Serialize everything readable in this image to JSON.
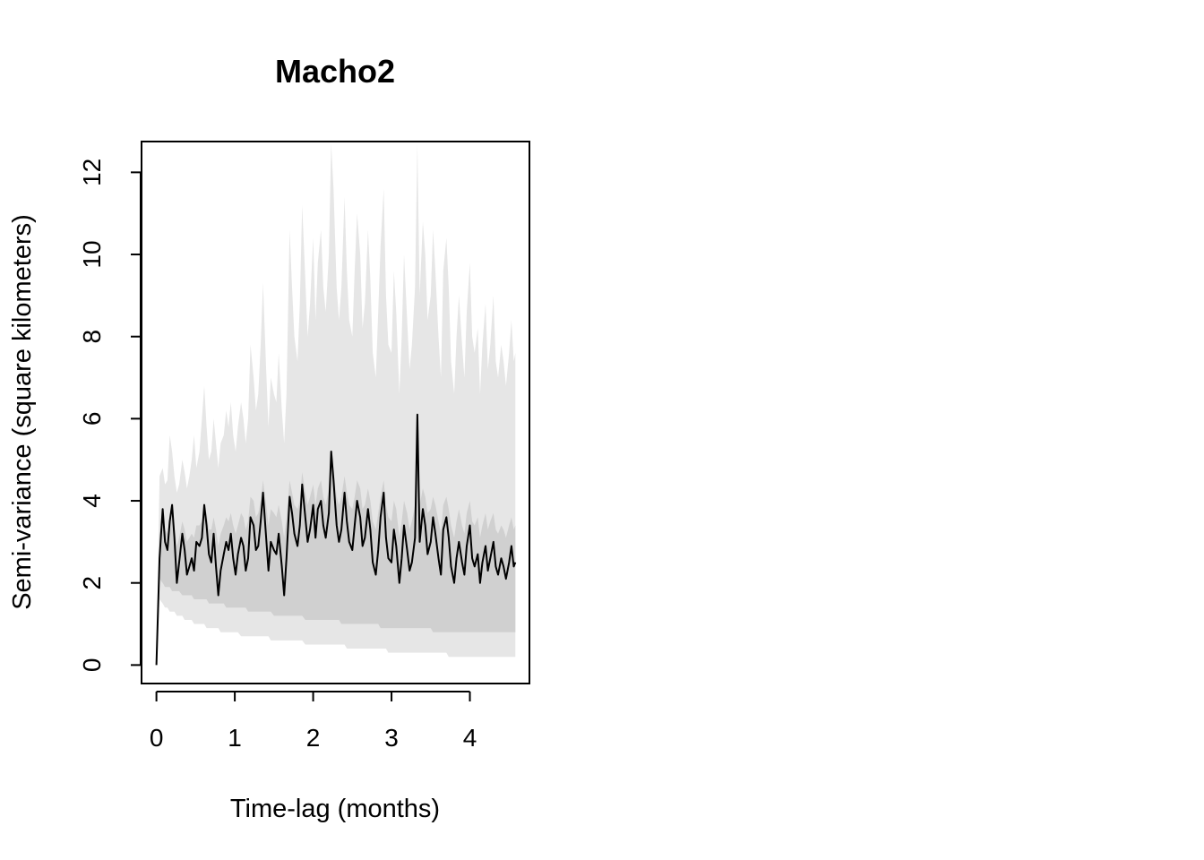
{
  "chart_data": {
    "type": "line",
    "title": "Macho2",
    "xlabel": "Time-lag (months)",
    "ylabel": "Semi-variance (square kilometers)",
    "xlim": [
      -0.19,
      4.76
    ],
    "ylim": [
      -0.45,
      12.75
    ],
    "xticks": [
      0,
      1,
      2,
      3,
      4
    ],
    "yticks": [
      0,
      2,
      4,
      6,
      8,
      10,
      12
    ],
    "grid": false,
    "legend": "none",
    "colors": {
      "line": "#000000",
      "outer_band": "#e6e6e6",
      "inner_band": "#d0d0d0",
      "axis": "#000000"
    },
    "series": [
      {
        "x": [
          0,
          0.04,
          0.08,
          0.11,
          0.14,
          0.17,
          0.2,
          0.23,
          0.26,
          0.29,
          0.33,
          0.36,
          0.39,
          0.42,
          0.45,
          0.48,
          0.51,
          0.55,
          0.58,
          0.61,
          0.64,
          0.67,
          0.7,
          0.73,
          0.76,
          0.79,
          0.82,
          0.86,
          0.89,
          0.92,
          0.95,
          0.98,
          1.01,
          1.04,
          1.08,
          1.11,
          1.14,
          1.17,
          1.2,
          1.24,
          1.27,
          1.3,
          1.33,
          1.36,
          1.4,
          1.43,
          1.46,
          1.5,
          1.53,
          1.56,
          1.6,
          1.63,
          1.66,
          1.7,
          1.73,
          1.76,
          1.8,
          1.83,
          1.86,
          1.9,
          1.93,
          1.96,
          2.0,
          2.03,
          2.06,
          2.1,
          2.13,
          2.16,
          2.2,
          2.23,
          2.26,
          2.3,
          2.33,
          2.36,
          2.4,
          2.43,
          2.46,
          2.5,
          2.53,
          2.56,
          2.6,
          2.63,
          2.66,
          2.7,
          2.73,
          2.76,
          2.8,
          2.83,
          2.86,
          2.9,
          2.93,
          2.96,
          3.0,
          3.03,
          3.06,
          3.1,
          3.13,
          3.16,
          3.2,
          3.23,
          3.26,
          3.3,
          3.33,
          3.36,
          3.4,
          3.43,
          3.46,
          3.5,
          3.53,
          3.56,
          3.6,
          3.63,
          3.66,
          3.7,
          3.73,
          3.76,
          3.8,
          3.83,
          3.86,
          3.9,
          3.93,
          3.96,
          4.0,
          4.03,
          4.06,
          4.1,
          4.13,
          4.16,
          4.2,
          4.23,
          4.26,
          4.3,
          4.33,
          4.36,
          4.4,
          4.43,
          4.46,
          4.5,
          4.53,
          4.56,
          4.58
        ],
        "y": [
          0.0,
          2.6,
          3.8,
          3.0,
          2.8,
          3.5,
          3.9,
          3.1,
          2.0,
          2.5,
          3.2,
          2.8,
          2.2,
          2.4,
          2.6,
          2.3,
          3.0,
          2.9,
          3.1,
          3.9,
          3.4,
          2.7,
          2.5,
          3.2,
          2.4,
          1.7,
          2.3,
          2.7,
          3.0,
          2.8,
          3.2,
          2.6,
          2.2,
          2.7,
          3.1,
          2.9,
          2.3,
          2.6,
          3.6,
          3.4,
          2.8,
          2.9,
          3.5,
          4.2,
          3.1,
          2.3,
          3.0,
          2.8,
          2.7,
          3.2,
          2.4,
          1.7,
          2.6,
          4.1,
          3.7,
          3.2,
          2.9,
          3.4,
          4.4,
          3.6,
          3.0,
          3.3,
          3.9,
          3.1,
          3.8,
          4.0,
          3.4,
          3.1,
          3.7,
          5.2,
          4.5,
          3.4,
          3.0,
          3.3,
          4.2,
          3.5,
          3.0,
          2.8,
          3.4,
          4.0,
          3.6,
          2.9,
          3.1,
          3.8,
          3.3,
          2.5,
          2.2,
          2.8,
          3.6,
          4.2,
          3.1,
          2.6,
          2.5,
          3.3,
          2.9,
          2.0,
          2.6,
          3.4,
          2.8,
          2.3,
          2.5,
          3.1,
          6.1,
          3.0,
          3.8,
          3.4,
          2.7,
          3.0,
          3.6,
          3.2,
          2.6,
          2.2,
          3.3,
          3.6,
          3.1,
          2.4,
          2.0,
          2.6,
          3.0,
          2.5,
          2.2,
          2.9,
          3.4,
          2.6,
          2.4,
          2.7,
          2.0,
          2.5,
          2.9,
          2.3,
          2.6,
          3.0,
          2.4,
          2.2,
          2.6,
          2.4,
          2.1,
          2.5,
          2.9,
          2.4,
          2.5
        ],
        "outer_lower": [
          0.0,
          1.6,
          1.5,
          1.4,
          1.4,
          1.3,
          1.3,
          1.3,
          1.2,
          1.2,
          1.2,
          1.1,
          1.1,
          1.1,
          1.1,
          1.0,
          1.0,
          1.0,
          1.0,
          1.0,
          0.9,
          0.9,
          0.9,
          0.9,
          0.9,
          0.9,
          0.8,
          0.8,
          0.8,
          0.8,
          0.8,
          0.8,
          0.8,
          0.8,
          0.7,
          0.7,
          0.7,
          0.7,
          0.7,
          0.7,
          0.7,
          0.7,
          0.7,
          0.7,
          0.7,
          0.7,
          0.6,
          0.6,
          0.6,
          0.6,
          0.6,
          0.6,
          0.6,
          0.6,
          0.6,
          0.6,
          0.6,
          0.6,
          0.6,
          0.5,
          0.5,
          0.5,
          0.5,
          0.5,
          0.5,
          0.5,
          0.5,
          0.5,
          0.5,
          0.5,
          0.5,
          0.5,
          0.5,
          0.5,
          0.5,
          0.4,
          0.4,
          0.4,
          0.4,
          0.4,
          0.4,
          0.4,
          0.4,
          0.4,
          0.4,
          0.4,
          0.4,
          0.4,
          0.4,
          0.4,
          0.4,
          0.3,
          0.3,
          0.3,
          0.3,
          0.3,
          0.3,
          0.3,
          0.3,
          0.3,
          0.3,
          0.3,
          0.3,
          0.3,
          0.3,
          0.3,
          0.3,
          0.3,
          0.3,
          0.3,
          0.3,
          0.3,
          0.3,
          0.3,
          0.2,
          0.2,
          0.2,
          0.2,
          0.2,
          0.2,
          0.2,
          0.2,
          0.2,
          0.2,
          0.2,
          0.2,
          0.2,
          0.2,
          0.2,
          0.2,
          0.2,
          0.2,
          0.2,
          0.2,
          0.2,
          0.2,
          0.2,
          0.2,
          0.2,
          0.2,
          0.2,
          0.2
        ],
        "outer_upper": [
          0.0,
          4.6,
          4.8,
          4.4,
          4.5,
          5.6,
          5.2,
          4.6,
          4.2,
          4.4,
          5.0,
          4.7,
          4.3,
          4.6,
          5.0,
          5.6,
          4.8,
          5.2,
          6.0,
          6.8,
          5.8,
          5.0,
          5.2,
          6.0,
          5.4,
          4.8,
          5.4,
          5.6,
          6.2,
          5.8,
          6.4,
          5.6,
          5.2,
          5.8,
          6.4,
          6.0,
          5.4,
          6.0,
          7.8,
          7.0,
          6.2,
          6.6,
          7.8,
          9.3,
          7.2,
          5.8,
          7.0,
          6.6,
          6.4,
          7.6,
          6.2,
          5.4,
          6.6,
          10.6,
          9.2,
          8.0,
          7.4,
          8.8,
          11.2,
          9.4,
          8.0,
          8.8,
          10.4,
          8.4,
          9.8,
          10.6,
          9.2,
          8.6,
          10.0,
          12.7,
          11.6,
          9.2,
          8.4,
          9.2,
          11.4,
          9.6,
          8.4,
          8.0,
          9.6,
          11.0,
          10.0,
          8.2,
          8.8,
          10.6,
          9.4,
          7.6,
          7.0,
          8.6,
          10.2,
          11.6,
          9.0,
          7.8,
          7.6,
          9.6,
          8.6,
          6.6,
          8.0,
          10.0,
          8.4,
          7.2,
          7.8,
          9.2,
          12.7,
          9.0,
          10.8,
          10.0,
          8.4,
          9.0,
          10.6,
          9.6,
          8.0,
          7.0,
          9.6,
          10.4,
          9.2,
          7.4,
          6.6,
          8.0,
          9.0,
          7.8,
          7.0,
          8.6,
          9.8,
          8.0,
          7.6,
          8.2,
          6.6,
          7.8,
          8.8,
          7.2,
          7.8,
          9.0,
          7.4,
          7.0,
          7.8,
          7.4,
          6.8,
          7.6,
          8.4,
          7.4,
          7.6
        ],
        "inner_lower": [
          0.0,
          2.1,
          2.0,
          1.9,
          1.9,
          1.9,
          1.8,
          1.8,
          1.8,
          1.8,
          1.7,
          1.7,
          1.7,
          1.7,
          1.7,
          1.6,
          1.6,
          1.6,
          1.6,
          1.6,
          1.6,
          1.5,
          1.5,
          1.5,
          1.5,
          1.5,
          1.5,
          1.5,
          1.4,
          1.4,
          1.4,
          1.4,
          1.4,
          1.4,
          1.4,
          1.4,
          1.4,
          1.3,
          1.3,
          1.3,
          1.3,
          1.3,
          1.3,
          1.3,
          1.3,
          1.3,
          1.3,
          1.2,
          1.2,
          1.2,
          1.2,
          1.2,
          1.2,
          1.2,
          1.2,
          1.2,
          1.2,
          1.2,
          1.2,
          1.1,
          1.1,
          1.1,
          1.1,
          1.1,
          1.1,
          1.1,
          1.1,
          1.1,
          1.1,
          1.1,
          1.1,
          1.1,
          1.1,
          1.0,
          1.0,
          1.0,
          1.0,
          1.0,
          1.0,
          1.0,
          1.0,
          1.0,
          1.0,
          1.0,
          1.0,
          1.0,
          1.0,
          1.0,
          0.9,
          0.9,
          0.9,
          0.9,
          0.9,
          0.9,
          0.9,
          0.9,
          0.9,
          0.9,
          0.9,
          0.9,
          0.9,
          0.9,
          0.9,
          0.9,
          0.9,
          0.9,
          0.9,
          0.9,
          0.8,
          0.8,
          0.8,
          0.8,
          0.8,
          0.8,
          0.8,
          0.8,
          0.8,
          0.8,
          0.8,
          0.8,
          0.8,
          0.8,
          0.8,
          0.8,
          0.8,
          0.8,
          0.8,
          0.8,
          0.8,
          0.8,
          0.8,
          0.8,
          0.8,
          0.8,
          0.8,
          0.8,
          0.8,
          0.8,
          0.8,
          0.8,
          0.8,
          0.8
        ],
        "inner_upper": [
          0.0,
          3.2,
          3.6,
          3.3,
          3.2,
          3.6,
          3.8,
          3.4,
          2.9,
          3.1,
          3.5,
          3.3,
          3.0,
          3.1,
          3.2,
          3.1,
          3.4,
          3.4,
          3.5,
          3.9,
          3.7,
          3.3,
          3.3,
          3.6,
          3.3,
          2.9,
          3.2,
          3.4,
          3.6,
          3.5,
          3.7,
          3.4,
          3.2,
          3.4,
          3.7,
          3.6,
          3.3,
          3.5,
          4.1,
          4.0,
          3.6,
          3.7,
          4.0,
          4.5,
          3.9,
          3.4,
          3.8,
          3.7,
          3.6,
          3.9,
          3.5,
          3.1,
          3.6,
          4.5,
          4.2,
          3.9,
          3.8,
          4.0,
          4.7,
          4.2,
          3.9,
          4.1,
          4.4,
          3.9,
          4.3,
          4.5,
          4.1,
          3.9,
          4.3,
          5.2,
          4.8,
          4.1,
          3.9,
          4.1,
          4.6,
          4.2,
          3.9,
          3.8,
          4.1,
          4.5,
          4.3,
          3.8,
          3.9,
          4.3,
          4.0,
          3.5,
          3.3,
          3.7,
          4.1,
          4.5,
          3.9,
          3.6,
          3.5,
          4.0,
          3.8,
          3.1,
          3.5,
          4.0,
          3.7,
          3.3,
          3.5,
          3.9,
          5.0,
          3.9,
          4.3,
          4.1,
          3.7,
          3.8,
          4.1,
          3.9,
          3.5,
          3.2,
          3.9,
          4.1,
          3.8,
          3.4,
          3.1,
          3.5,
          3.8,
          3.4,
          3.2,
          3.7,
          4.0,
          3.5,
          3.4,
          3.6,
          3.1,
          3.4,
          3.7,
          3.3,
          3.5,
          3.7,
          3.3,
          3.2,
          3.4,
          3.3,
          3.1,
          3.4,
          3.6,
          3.3,
          3.4
        ]
      }
    ]
  }
}
